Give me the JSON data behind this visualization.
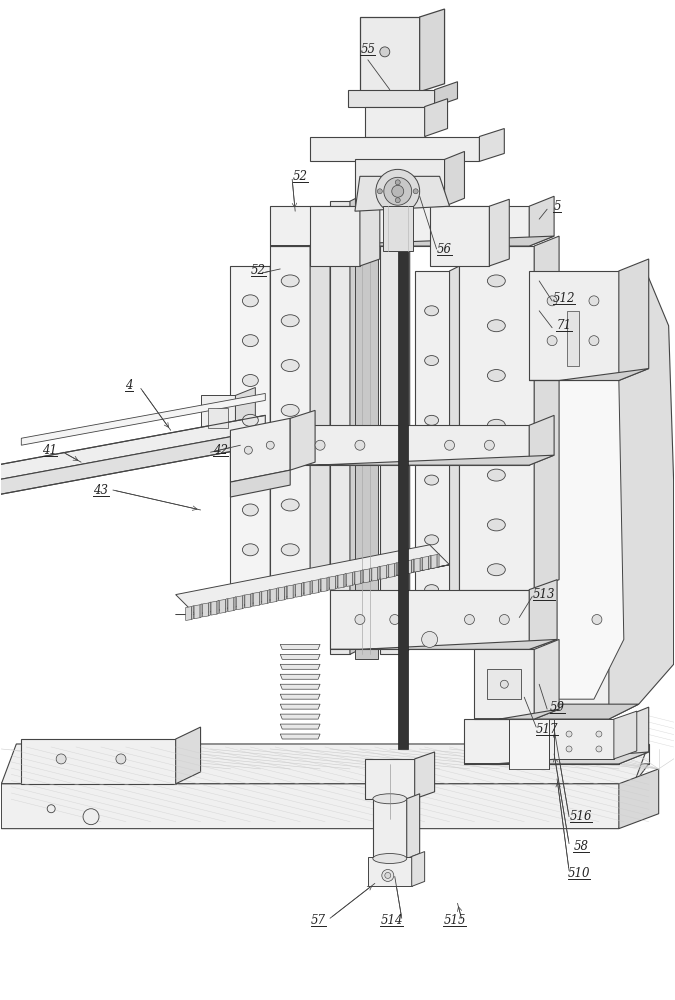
{
  "bg_color": "#ffffff",
  "lc": "#444444",
  "lc2": "#666666",
  "lc_thin": "#888888",
  "lc_dark": "#222222",
  "fc_white": "#ffffff",
  "fc_light": "#f0f0f0",
  "fc_mid": "#e0e0e0",
  "fc_gray": "#d0d0d0",
  "fc_dark": "#b8b8b8",
  "fc_vdark": "#999999",
  "figsize": [
    6.75,
    10.0
  ],
  "dpi": 100
}
